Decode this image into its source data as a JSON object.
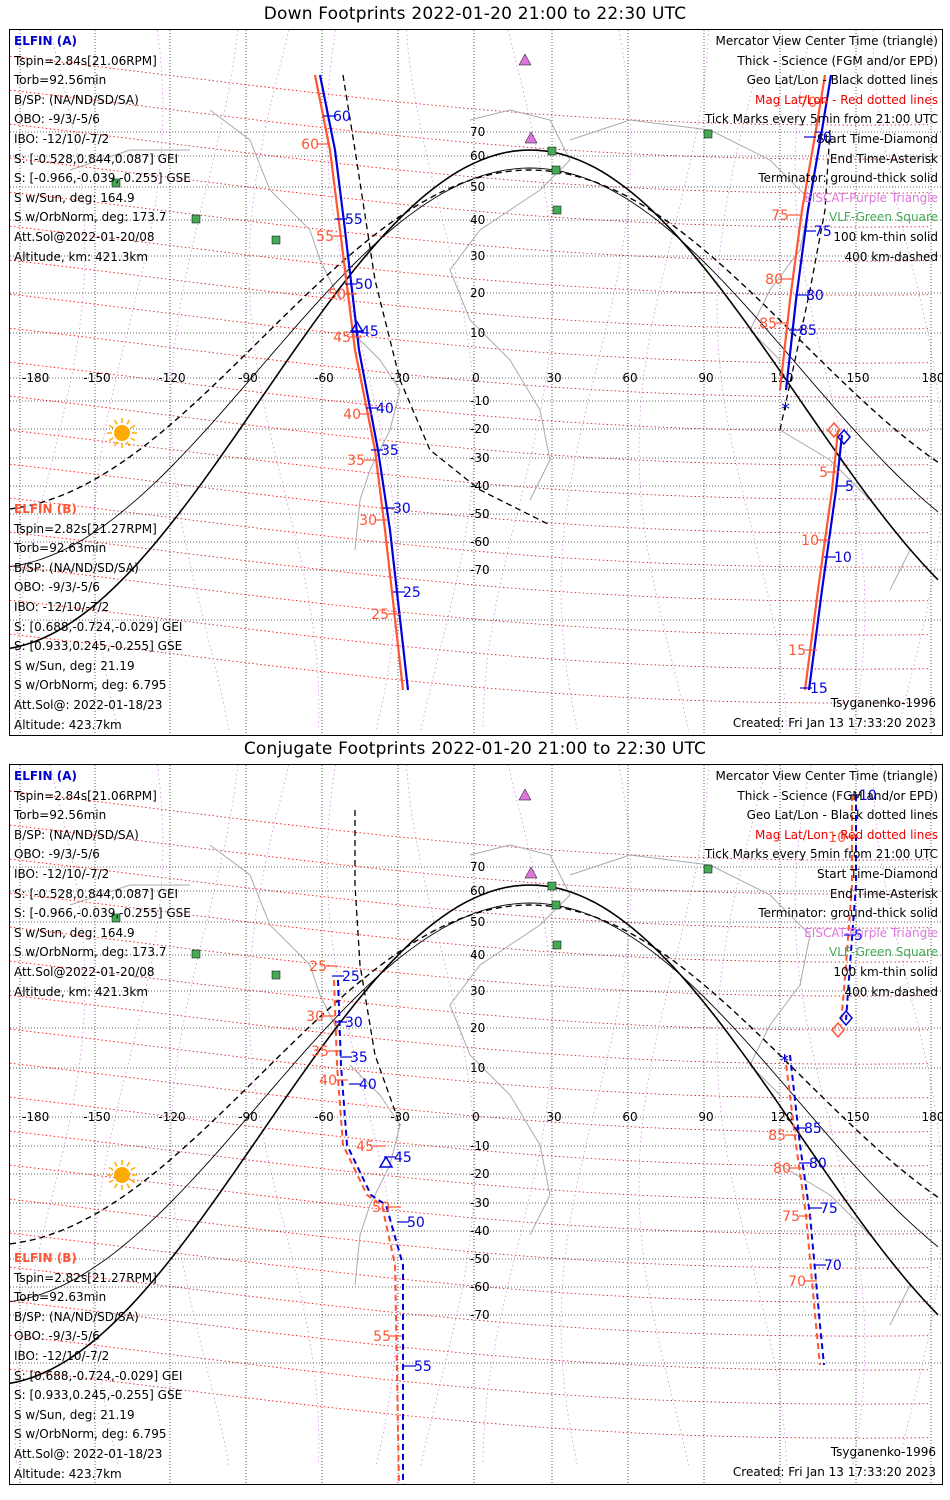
{
  "panels": [
    {
      "title": "Down Footprints 2022-01-20 21:00 to 22:30 UTC",
      "mode": "down"
    },
    {
      "title": "Conjugate Footprints 2022-01-20 21:00 to 22:30 UTC",
      "mode": "conj"
    }
  ],
  "elfin_a": {
    "name": "ELFIN (A)",
    "lines": [
      "Tspin=2.84s[21.06RPM]",
      "Torb=92.56min",
      "B/SP: (NA/ND/SD/SA)",
      "OBO: -9/3/-5/6",
      "IBO: -12/10/-7/2",
      "S: [-0.528,0.844,0.087] GEI",
      "S: [-0.966,-0.039,-0.255] GSE",
      "S w/Sun, deg: 164.9",
      "S w/OrbNorm, deg: 173.7",
      "Att.Sol@2022-01-20/08",
      "Altitude, km: 421.3km"
    ]
  },
  "elfin_b": {
    "name": "ELFIN (B)",
    "lines": [
      "Tspin=2.82s[21.27RPM]",
      "Torb=92.63min",
      "B/SP: (NA/ND/SD/SA)",
      "OBO: -9/3/-5/6",
      "IBO: -12/10/-7/2",
      "S: [0.688,-0.724,-0.029] GEI",
      "S: [0.933,0.245,-0.255] GSE",
      "S w/Sun, deg: 21.19",
      "S w/OrbNorm, deg: 6.795",
      "Att.Sol@: 2022-01-18/23",
      "Altitude: 423.7km"
    ]
  },
  "legend": [
    {
      "text": "Mercator View Center Time (triangle)",
      "color": "#000000"
    },
    {
      "text": "Thick - Science (FGM and/or EPD)",
      "color": "#000000"
    },
    {
      "text": "Geo Lat/Lon - Black dotted lines",
      "color": "#000000"
    },
    {
      "text": "Mag Lat/Lon - Red dotted lines",
      "color": "#ee0000"
    },
    {
      "text": "Tick Marks every 5min from 21:00 UTC",
      "color": "#000000"
    },
    {
      "text": "Start Time-Diamond",
      "color": "#000000"
    },
    {
      "text": "End Time-Asterisk",
      "color": "#000000"
    },
    {
      "text": "Terminator: ground-thick solid",
      "color": "#000000"
    },
    {
      "text": "EISCAT-Purple Triangle",
      "color": "#dd77dd"
    },
    {
      "text": "VLF-Green Square",
      "color": "#44aa55"
    },
    {
      "text": "100 km-thin solid",
      "color": "#000000"
    },
    {
      "text": "400 km-dashed",
      "color": "#000000"
    }
  ],
  "model": "Tsyganenko-1996",
  "created": "Created: Fri Jan 13 17:33:20 2023",
  "axes": {
    "lon_ticks": [
      "-180",
      "-150",
      "-120",
      "-90",
      "-60",
      "-30",
      "0",
      "30",
      "60",
      "90",
      "120",
      "150",
      "180"
    ],
    "lat_ticks": [
      "70",
      "60",
      "50",
      "40",
      "30",
      "20",
      "10",
      "-10",
      "-20",
      "-30",
      "-40",
      "-50",
      "-60",
      "-70"
    ]
  },
  "colors": {
    "elfin_a": "#0000dd",
    "elfin_b": "#ff5533",
    "mag_grid": "#ee0000",
    "geo_grid": "#000000",
    "eiscat": "#dd77dd",
    "vlf": "#44aa55",
    "sun": "#ffaa00"
  },
  "down_ticks_a": [
    "60",
    "55",
    "50",
    "45",
    "40",
    "35",
    "30",
    "25",
    "70",
    "75",
    "80",
    "85",
    "5",
    "10",
    "15"
  ],
  "down_ticks_b": [
    "60",
    "55",
    "50",
    "45",
    "40",
    "35",
    "30",
    "25",
    "70",
    "75",
    "80",
    "85",
    "5",
    "10",
    "15"
  ],
  "conj_ticks_a": [
    "25",
    "30",
    "35",
    "40",
    "45",
    "50",
    "55",
    "85",
    "80",
    "75",
    "70",
    "10",
    "5"
  ],
  "conj_ticks_b": [
    "25",
    "30",
    "35",
    "40",
    "45",
    "50",
    "55",
    "85",
    "80",
    "75",
    "70",
    "10"
  ]
}
